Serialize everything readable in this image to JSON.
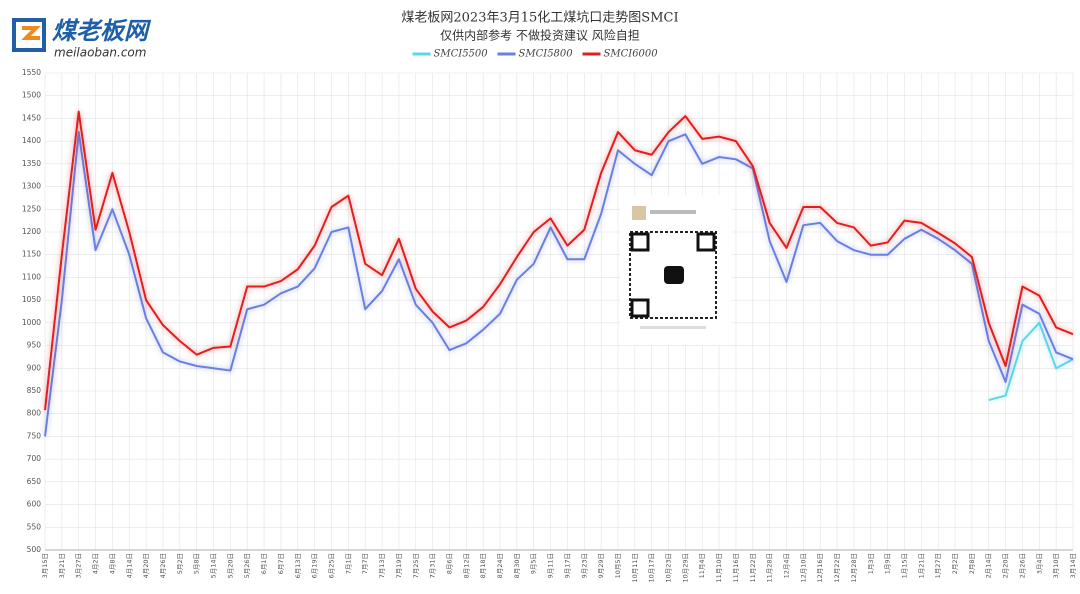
{
  "logo": {
    "name": "煤老板网",
    "url": "meilaoban.com"
  },
  "chart_data": {
    "type": "line",
    "title": "煤老板网2023年3月15化工煤坑口走势图SMCI",
    "subtitle": "仅供内部参考 不做投资建议 风险自担",
    "categories": [
      "3月15日",
      "3月21日",
      "3月27日",
      "4月2日",
      "4月8日",
      "4月14日",
      "4月20日",
      "4月26日",
      "5月2日",
      "5月8日",
      "5月14日",
      "5月20日",
      "5月26日",
      "6月1日",
      "6月7日",
      "6月13日",
      "6月19日",
      "6月25日",
      "7月1日",
      "7月7日",
      "7月13日",
      "7月19日",
      "7月25日",
      "7月31日",
      "8月6日",
      "8月12日",
      "8月18日",
      "8月24日",
      "8月30日",
      "9月5日",
      "9月11日",
      "9月17日",
      "9月23日",
      "9月29日",
      "10月5日",
      "10月11日",
      "10月17日",
      "10月23日",
      "10月29日",
      "11月4日",
      "11月10日",
      "11月16日",
      "11月22日",
      "11月28日",
      "12月4日",
      "12月10日",
      "12月16日",
      "12月22日",
      "12月28日",
      "1月3日",
      "1月9日",
      "1月15日",
      "1月21日",
      "1月27日",
      "2月2日",
      "2月8日",
      "2月14日",
      "2月20日",
      "2月26日",
      "3月4日",
      "3月10日",
      "3月14日"
    ],
    "series": [
      {
        "name": "SMCI5500",
        "color": "#5dd6e6",
        "values": [
          null,
          null,
          null,
          null,
          null,
          null,
          null,
          null,
          null,
          null,
          null,
          null,
          null,
          null,
          null,
          null,
          null,
          null,
          null,
          null,
          null,
          null,
          null,
          null,
          null,
          null,
          null,
          null,
          null,
          null,
          null,
          null,
          null,
          null,
          null,
          null,
          null,
          null,
          null,
          null,
          null,
          null,
          null,
          null,
          null,
          null,
          null,
          null,
          null,
          null,
          null,
          null,
          null,
          null,
          null,
          null,
          830,
          840,
          960,
          1000,
          900,
          920
        ]
      },
      {
        "name": "SMCI5800",
        "color": "#6a7fe0",
        "values": [
          750,
          1050,
          1420,
          1160,
          1250,
          1150,
          1010,
          935,
          915,
          905,
          900,
          895,
          1030,
          1040,
          1065,
          1080,
          1120,
          1200,
          1210,
          1030,
          1070,
          1140,
          1040,
          1000,
          940,
          955,
          985,
          1020,
          1095,
          1130,
          1210,
          1140,
          1140,
          1240,
          1380,
          1350,
          1325,
          1400,
          1415,
          1350,
          1365,
          1360,
          1340,
          1180,
          1090,
          1215,
          1220,
          1180,
          1160,
          1150,
          1150,
          1185,
          1205,
          1185,
          1160,
          1130,
          960,
          870,
          1040,
          1020,
          935,
          920
        ]
      },
      {
        "name": "SMCI6000",
        "color": "#e02020",
        "values": [
          808,
          1150,
          1465,
          1205,
          1330,
          1200,
          1050,
          995,
          960,
          930,
          945,
          948,
          1080,
          1080,
          1092,
          1118,
          1170,
          1255,
          1280,
          1130,
          1105,
          1185,
          1075,
          1025,
          990,
          1005,
          1035,
          1085,
          1145,
          1200,
          1230,
          1170,
          1205,
          1330,
          1420,
          1380,
          1370,
          1420,
          1455,
          1405,
          1410,
          1400,
          1345,
          1220,
          1165,
          1255,
          1255,
          1220,
          1210,
          1170,
          1177,
          1225,
          1220,
          1198,
          1175,
          1145,
          1000,
          905,
          1080,
          1060,
          990,
          975
        ]
      }
    ],
    "ylim": [
      500,
      1550
    ],
    "yticks": [
      500,
      550,
      600,
      650,
      700,
      750,
      800,
      850,
      900,
      950,
      1000,
      1050,
      1100,
      1150,
      1200,
      1250,
      1300,
      1350,
      1400,
      1450,
      1500,
      1550
    ],
    "grid": true
  }
}
